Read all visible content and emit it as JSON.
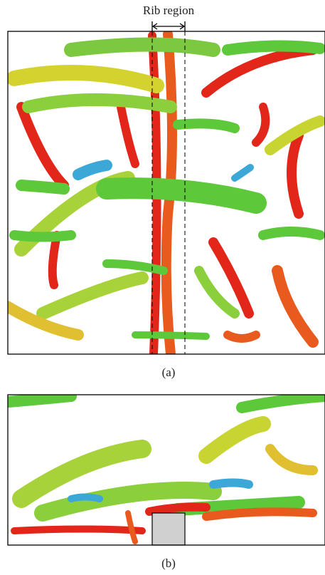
{
  "figure": {
    "rib_label": "Rib region",
    "panel_a_caption": "(a)",
    "panel_b_caption": "(b)"
  }
}
